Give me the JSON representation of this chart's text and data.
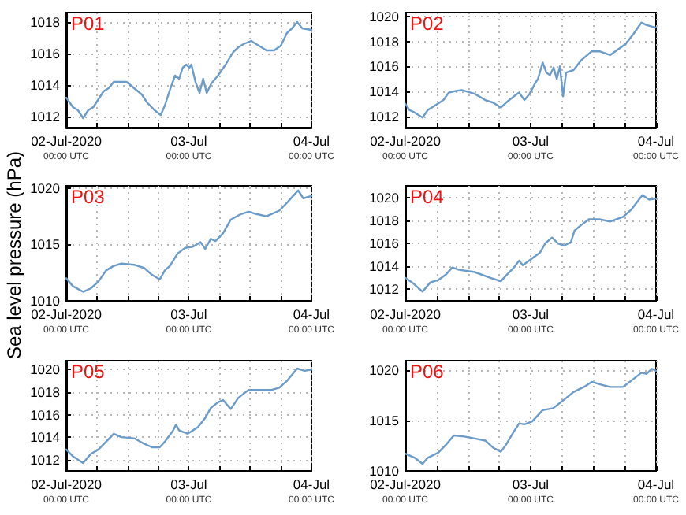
{
  "chart_data": [
    {
      "type": "line",
      "title": "P01",
      "color": "#6b9bc9",
      "grid": true,
      "x": [
        "2020-07-02T00:00",
        "2020-07-02T01:18",
        "2020-07-02T02:18",
        "2020-07-02T03:18",
        "2020-07-02T04:18",
        "2020-07-02T05:18",
        "2020-07-02T06:18",
        "2020-07-02T07:18",
        "2020-07-02T08:18",
        "2020-07-02T09:18",
        "2020-07-02T10:18",
        "2020-07-02T11:48",
        "2020-07-02T13:18",
        "2020-07-02T14:48",
        "2020-07-02T15:48",
        "2020-07-02T17:18",
        "2020-07-02T18:30",
        "2020-07-02T19:18",
        "2020-07-02T20:18",
        "2020-07-02T21:18",
        "2020-07-02T22:06",
        "2020-07-02T22:48",
        "2020-07-02T23:30",
        "2020-07-03T00:06",
        "2020-07-03T00:30",
        "2020-07-03T01:18",
        "2020-07-03T02:06",
        "2020-07-03T02:48",
        "2020-07-03T03:30",
        "2020-07-03T04:24",
        "2020-07-03T05:42",
        "2020-07-03T07:12",
        "2020-07-03T08:42",
        "2020-07-03T09:42",
        "2020-07-03T10:42",
        "2020-07-03T12:12",
        "2020-07-03T13:42",
        "2020-07-03T15:12",
        "2020-07-03T16:42",
        "2020-07-03T18:00",
        "2020-07-03T19:12",
        "2020-07-03T20:12",
        "2020-07-03T21:12",
        "2020-07-03T22:12",
        "2020-07-04T00:00"
      ],
      "values": [
        1013.2,
        1012.6,
        1012.4,
        1011.9,
        1012.4,
        1012.6,
        1013.1,
        1013.6,
        1013.8,
        1014.2,
        1014.2,
        1014.2,
        1013.8,
        1013.4,
        1012.9,
        1012.4,
        1012.1,
        1012.7,
        1013.7,
        1014.6,
        1014.4,
        1015.1,
        1015.3,
        1015.1,
        1015.3,
        1014.2,
        1013.5,
        1014.4,
        1013.5,
        1014.1,
        1014.6,
        1015.3,
        1016.1,
        1016.4,
        1016.6,
        1016.8,
        1016.5,
        1016.2,
        1016.2,
        1016.5,
        1017.3,
        1017.6,
        1018.0,
        1017.6,
        1017.5
      ],
      "xlim": [
        "2020-07-02T00:00",
        "2020-07-04T00:00"
      ],
      "xticks": [
        {
          "value": "2020-07-02T00:00",
          "label": "02-Jul-2020\n00:00 UTC"
        },
        {
          "value": "2020-07-02T06:00",
          "label": null
        },
        {
          "value": "2020-07-02T12:00",
          "label": null
        },
        {
          "value": "2020-07-02T18:00",
          "label": null
        },
        {
          "value": "2020-07-03T00:00",
          "label": "03-Jul\n00:00 UTC"
        },
        {
          "value": "2020-07-03T06:00",
          "label": null
        },
        {
          "value": "2020-07-03T12:00",
          "label": null
        },
        {
          "value": "2020-07-03T18:00",
          "label": null
        },
        {
          "value": "2020-07-04T00:00",
          "label": "04-Jul\n00:00 UTC"
        }
      ],
      "ylim": [
        1011.3,
        1018.6
      ],
      "yticks": [
        1012,
        1014,
        1016,
        1018
      ]
    },
    {
      "type": "line",
      "title": "P02",
      "color": "#6b9bc9",
      "grid": true,
      "x": [
        "2020-07-02T00:00",
        "2020-07-02T00:48",
        "2020-07-02T01:48",
        "2020-07-02T03:18",
        "2020-07-02T04:18",
        "2020-07-02T05:48",
        "2020-07-02T07:18",
        "2020-07-02T08:18",
        "2020-07-02T09:18",
        "2020-07-02T10:48",
        "2020-07-02T13:18",
        "2020-07-02T15:18",
        "2020-07-02T16:48",
        "2020-07-02T18:18",
        "2020-07-02T19:18",
        "2020-07-02T20:48",
        "2020-07-02T21:48",
        "2020-07-02T22:48",
        "2020-07-02T23:48",
        "2020-07-03T00:48",
        "2020-07-03T01:24",
        "2020-07-03T02:18",
        "2020-07-03T03:00",
        "2020-07-03T03:42",
        "2020-07-03T04:24",
        "2020-07-03T05:00",
        "2020-07-03T05:36",
        "2020-07-03T06:12",
        "2020-07-03T06:48",
        "2020-07-03T08:12",
        "2020-07-03T09:42",
        "2020-07-03T11:42",
        "2020-07-03T13:12",
        "2020-07-03T15:12",
        "2020-07-03T18:12",
        "2020-07-03T19:42",
        "2020-07-03T21:12",
        "2020-07-03T22:12",
        "2020-07-04T00:00"
      ],
      "values": [
        1013.0,
        1012.5,
        1012.3,
        1011.9,
        1012.5,
        1012.9,
        1013.3,
        1013.9,
        1014.0,
        1014.1,
        1013.8,
        1013.3,
        1013.1,
        1012.7,
        1013.1,
        1013.6,
        1013.9,
        1013.3,
        1013.8,
        1014.6,
        1015.0,
        1016.3,
        1015.5,
        1015.3,
        1015.9,
        1015.0,
        1016.0,
        1013.6,
        1015.5,
        1015.7,
        1016.5,
        1017.2,
        1017.2,
        1016.9,
        1017.8,
        1018.6,
        1019.5,
        1019.3,
        1019.1
      ],
      "xlim": [
        "2020-07-02T00:00",
        "2020-07-04T00:00"
      ],
      "xticks": [
        {
          "value": "2020-07-02T00:00",
          "label": "02-Jul-2020\n00:00 UTC"
        },
        {
          "value": "2020-07-02T06:00",
          "label": null
        },
        {
          "value": "2020-07-02T12:00",
          "label": null
        },
        {
          "value": "2020-07-02T18:00",
          "label": null
        },
        {
          "value": "2020-07-03T00:00",
          "label": "03-Jul\n00:00 UTC"
        },
        {
          "value": "2020-07-03T06:00",
          "label": null
        },
        {
          "value": "2020-07-03T12:00",
          "label": null
        },
        {
          "value": "2020-07-03T18:00",
          "label": null
        },
        {
          "value": "2020-07-04T00:00",
          "label": "04-Jul\n00:00 UTC"
        }
      ],
      "ylim": [
        1011.1,
        1020.3
      ],
      "yticks": [
        1012,
        1014,
        1016,
        1018,
        1020
      ]
    },
    {
      "type": "line",
      "title": "P03",
      "ylabel": "Sea level pressure (hPa)",
      "color": "#6b9bc9",
      "grid": true,
      "x": [
        "2020-07-02T00:00",
        "2020-07-02T01:18",
        "2020-07-02T03:18",
        "2020-07-02T04:48",
        "2020-07-02T06:18",
        "2020-07-02T07:48",
        "2020-07-02T09:18",
        "2020-07-02T10:48",
        "2020-07-02T13:18",
        "2020-07-02T15:18",
        "2020-07-02T16:48",
        "2020-07-02T18:18",
        "2020-07-02T19:18",
        "2020-07-02T20:18",
        "2020-07-02T21:48",
        "2020-07-02T23:18",
        "2020-07-03T00:48",
        "2020-07-03T02:18",
        "2020-07-03T03:12",
        "2020-07-03T04:18",
        "2020-07-03T05:12",
        "2020-07-03T06:42",
        "2020-07-03T08:12",
        "2020-07-03T10:12",
        "2020-07-03T11:42",
        "2020-07-03T13:12",
        "2020-07-03T15:12",
        "2020-07-03T17:42",
        "2020-07-03T19:12",
        "2020-07-03T20:24",
        "2020-07-03T21:24",
        "2020-07-03T22:24",
        "2020-07-04T00:00"
      ],
      "values": [
        1012.0,
        1011.3,
        1010.8,
        1011.1,
        1011.7,
        1012.7,
        1013.1,
        1013.3,
        1013.2,
        1012.9,
        1012.3,
        1011.9,
        1012.7,
        1013.1,
        1014.2,
        1014.7,
        1014.8,
        1015.2,
        1014.6,
        1015.5,
        1015.3,
        1016.0,
        1017.2,
        1017.7,
        1017.9,
        1017.7,
        1017.5,
        1018.0,
        1018.7,
        1019.3,
        1019.8,
        1019.1,
        1019.3
      ],
      "xlim": [
        "2020-07-02T00:00",
        "2020-07-04T00:00"
      ],
      "xticks": [
        {
          "value": "2020-07-02T00:00",
          "label": "02-Jul-2020\n00:00 UTC"
        },
        {
          "value": "2020-07-02T06:00",
          "label": null
        },
        {
          "value": "2020-07-02T12:00",
          "label": null
        },
        {
          "value": "2020-07-02T18:00",
          "label": null
        },
        {
          "value": "2020-07-03T00:00",
          "label": "03-Jul\n00:00 UTC"
        },
        {
          "value": "2020-07-03T06:00",
          "label": null
        },
        {
          "value": "2020-07-03T12:00",
          "label": null
        },
        {
          "value": "2020-07-03T18:00",
          "label": null
        },
        {
          "value": "2020-07-04T00:00",
          "label": "04-Jul\n00:00 UTC"
        }
      ],
      "ylim": [
        1010,
        1020.2
      ],
      "yticks": [
        1010,
        1015,
        1020
      ]
    },
    {
      "type": "line",
      "title": "P04",
      "color": "#6b9bc9",
      "grid": true,
      "x": [
        "2020-07-02T00:00",
        "2020-07-02T01:18",
        "2020-07-02T03:18",
        "2020-07-02T04:48",
        "2020-07-02T06:18",
        "2020-07-02T07:48",
        "2020-07-02T09:00",
        "2020-07-02T10:18",
        "2020-07-02T13:18",
        "2020-07-02T16:18",
        "2020-07-02T18:18",
        "2020-07-02T19:18",
        "2020-07-02T20:48",
        "2020-07-02T21:48",
        "2020-07-02T22:30",
        "2020-07-03T00:18",
        "2020-07-03T01:48",
        "2020-07-03T02:48",
        "2020-07-03T04:06",
        "2020-07-03T05:12",
        "2020-07-03T06:24",
        "2020-07-03T07:42",
        "2020-07-03T08:24",
        "2020-07-03T09:42",
        "2020-07-03T11:12",
        "2020-07-03T13:12",
        "2020-07-03T15:12",
        "2020-07-03T17:42",
        "2020-07-03T19:12",
        "2020-07-03T21:24",
        "2020-07-03T22:42",
        "2020-07-04T00:00"
      ],
      "values": [
        1013.0,
        1012.6,
        1011.8,
        1012.6,
        1012.8,
        1013.3,
        1013.9,
        1013.7,
        1013.5,
        1013.0,
        1012.7,
        1013.2,
        1013.9,
        1014.5,
        1014.1,
        1014.7,
        1015.2,
        1016.0,
        1016.5,
        1016.0,
        1015.8,
        1016.1,
        1017.1,
        1017.6,
        1018.1,
        1018.1,
        1017.9,
        1018.3,
        1018.9,
        1020.2,
        1019.8,
        1019.9
      ],
      "xlim": [
        "2020-07-02T00:00",
        "2020-07-04T00:00"
      ],
      "xticks": [
        {
          "value": "2020-07-02T00:00",
          "label": "02-Jul-2020\n00:00 UTC"
        },
        {
          "value": "2020-07-02T06:00",
          "label": null
        },
        {
          "value": "2020-07-02T12:00",
          "label": null
        },
        {
          "value": "2020-07-02T18:00",
          "label": null
        },
        {
          "value": "2020-07-03T00:00",
          "label": "03-Jul\n00:00 UTC"
        },
        {
          "value": "2020-07-03T06:00",
          "label": null
        },
        {
          "value": "2020-07-03T12:00",
          "label": null
        },
        {
          "value": "2020-07-03T18:00",
          "label": null
        },
        {
          "value": "2020-07-04T00:00",
          "label": "04-Jul\n00:00 UTC"
        }
      ],
      "ylim": [
        1011,
        1021
      ],
      "yticks": [
        1012,
        1014,
        1016,
        1018,
        1020
      ]
    },
    {
      "type": "line",
      "title": "P05",
      "color": "#6b9bc9",
      "grid": true,
      "x": [
        "2020-07-02T00:00",
        "2020-07-02T01:18",
        "2020-07-02T03:18",
        "2020-07-02T04:48",
        "2020-07-02T06:18",
        "2020-07-02T07:48",
        "2020-07-02T09:18",
        "2020-07-02T10:48",
        "2020-07-02T13:18",
        "2020-07-02T15:18",
        "2020-07-02T16:48",
        "2020-07-02T18:18",
        "2020-07-02T19:18",
        "2020-07-02T20:48",
        "2020-07-02T21:30",
        "2020-07-02T22:06",
        "2020-07-02T23:48",
        "2020-07-03T01:48",
        "2020-07-03T03:12",
        "2020-07-03T04:18",
        "2020-07-03T05:42",
        "2020-07-03T06:42",
        "2020-07-03T08:12",
        "2020-07-03T09:42",
        "2020-07-03T11:42",
        "2020-07-03T13:12",
        "2020-07-03T16:12",
        "2020-07-03T17:42",
        "2020-07-03T19:12",
        "2020-07-03T21:12",
        "2020-07-03T22:42",
        "2020-07-04T00:00"
      ],
      "values": [
        1012.9,
        1012.3,
        1011.7,
        1012.5,
        1012.9,
        1013.6,
        1014.3,
        1014.0,
        1013.9,
        1013.4,
        1013.1,
        1013.1,
        1013.6,
        1014.5,
        1015.1,
        1014.6,
        1014.3,
        1014.9,
        1015.7,
        1016.6,
        1017.1,
        1017.3,
        1016.5,
        1017.5,
        1018.2,
        1018.2,
        1018.2,
        1018.4,
        1019.0,
        1020.1,
        1019.9,
        1020.0
      ],
      "xlim": [
        "2020-07-02T00:00",
        "2020-07-04T00:00"
      ],
      "xticks": [
        {
          "value": "2020-07-02T00:00",
          "label": "02-Jul-2020\n00:00 UTC"
        },
        {
          "value": "2020-07-02T06:00",
          "label": null
        },
        {
          "value": "2020-07-02T12:00",
          "label": null
        },
        {
          "value": "2020-07-02T18:00",
          "label": null
        },
        {
          "value": "2020-07-03T00:00",
          "label": "03-Jul\n00:00 UTC"
        },
        {
          "value": "2020-07-03T06:00",
          "label": null
        },
        {
          "value": "2020-07-03T12:00",
          "label": null
        },
        {
          "value": "2020-07-03T18:00",
          "label": null
        },
        {
          "value": "2020-07-04T00:00",
          "label": "04-Jul\n00:00 UTC"
        }
      ],
      "ylim": [
        1011,
        1020.8
      ],
      "yticks": [
        1012,
        1014,
        1016,
        1018,
        1020
      ]
    },
    {
      "type": "line",
      "title": "P06",
      "color": "#6b9bc9",
      "grid": true,
      "x": [
        "2020-07-02T00:00",
        "2020-07-02T01:48",
        "2020-07-02T03:18",
        "2020-07-02T04:18",
        "2020-07-02T06:18",
        "2020-07-02T07:48",
        "2020-07-02T09:18",
        "2020-07-02T11:18",
        "2020-07-02T13:18",
        "2020-07-02T15:18",
        "2020-07-02T16:48",
        "2020-07-02T18:18",
        "2020-07-02T19:18",
        "2020-07-02T20:48",
        "2020-07-02T21:48",
        "2020-07-02T22:48",
        "2020-07-03T00:18",
        "2020-07-03T02:18",
        "2020-07-03T04:18",
        "2020-07-03T06:18",
        "2020-07-03T08:12",
        "2020-07-03T10:12",
        "2020-07-03T11:42",
        "2020-07-03T13:42",
        "2020-07-03T15:12",
        "2020-07-03T17:42",
        "2020-07-03T19:42",
        "2020-07-03T21:12",
        "2020-07-03T22:12",
        "2020-07-03T23:12",
        "2020-07-04T00:00"
      ],
      "values": [
        1011.7,
        1011.3,
        1010.7,
        1011.3,
        1011.8,
        1012.6,
        1013.5,
        1013.4,
        1013.2,
        1013.0,
        1012.3,
        1011.9,
        1012.6,
        1013.9,
        1014.7,
        1014.6,
        1014.9,
        1016.0,
        1016.2,
        1017.0,
        1017.8,
        1018.3,
        1018.8,
        1018.5,
        1018.3,
        1018.3,
        1019.1,
        1019.7,
        1019.6,
        1020.1,
        1019.9
      ],
      "xlim": [
        "2020-07-02T00:00",
        "2020-07-04T00:00"
      ],
      "xticks": [
        {
          "value": "2020-07-02T00:00",
          "label": "02-Jul-2020\n00:00 UTC"
        },
        {
          "value": "2020-07-02T06:00",
          "label": null
        },
        {
          "value": "2020-07-02T12:00",
          "label": null
        },
        {
          "value": "2020-07-02T18:00",
          "label": null
        },
        {
          "value": "2020-07-03T00:00",
          "label": "03-Jul\n00:00 UTC"
        },
        {
          "value": "2020-07-03T06:00",
          "label": null
        },
        {
          "value": "2020-07-03T12:00",
          "label": null
        },
        {
          "value": "2020-07-03T18:00",
          "label": null
        },
        {
          "value": "2020-07-04T00:00",
          "label": "04-Jul\n00:00 UTC"
        }
      ],
      "ylim": [
        1010,
        1020.9
      ],
      "yticks": [
        1010,
        1015,
        1020
      ]
    }
  ]
}
